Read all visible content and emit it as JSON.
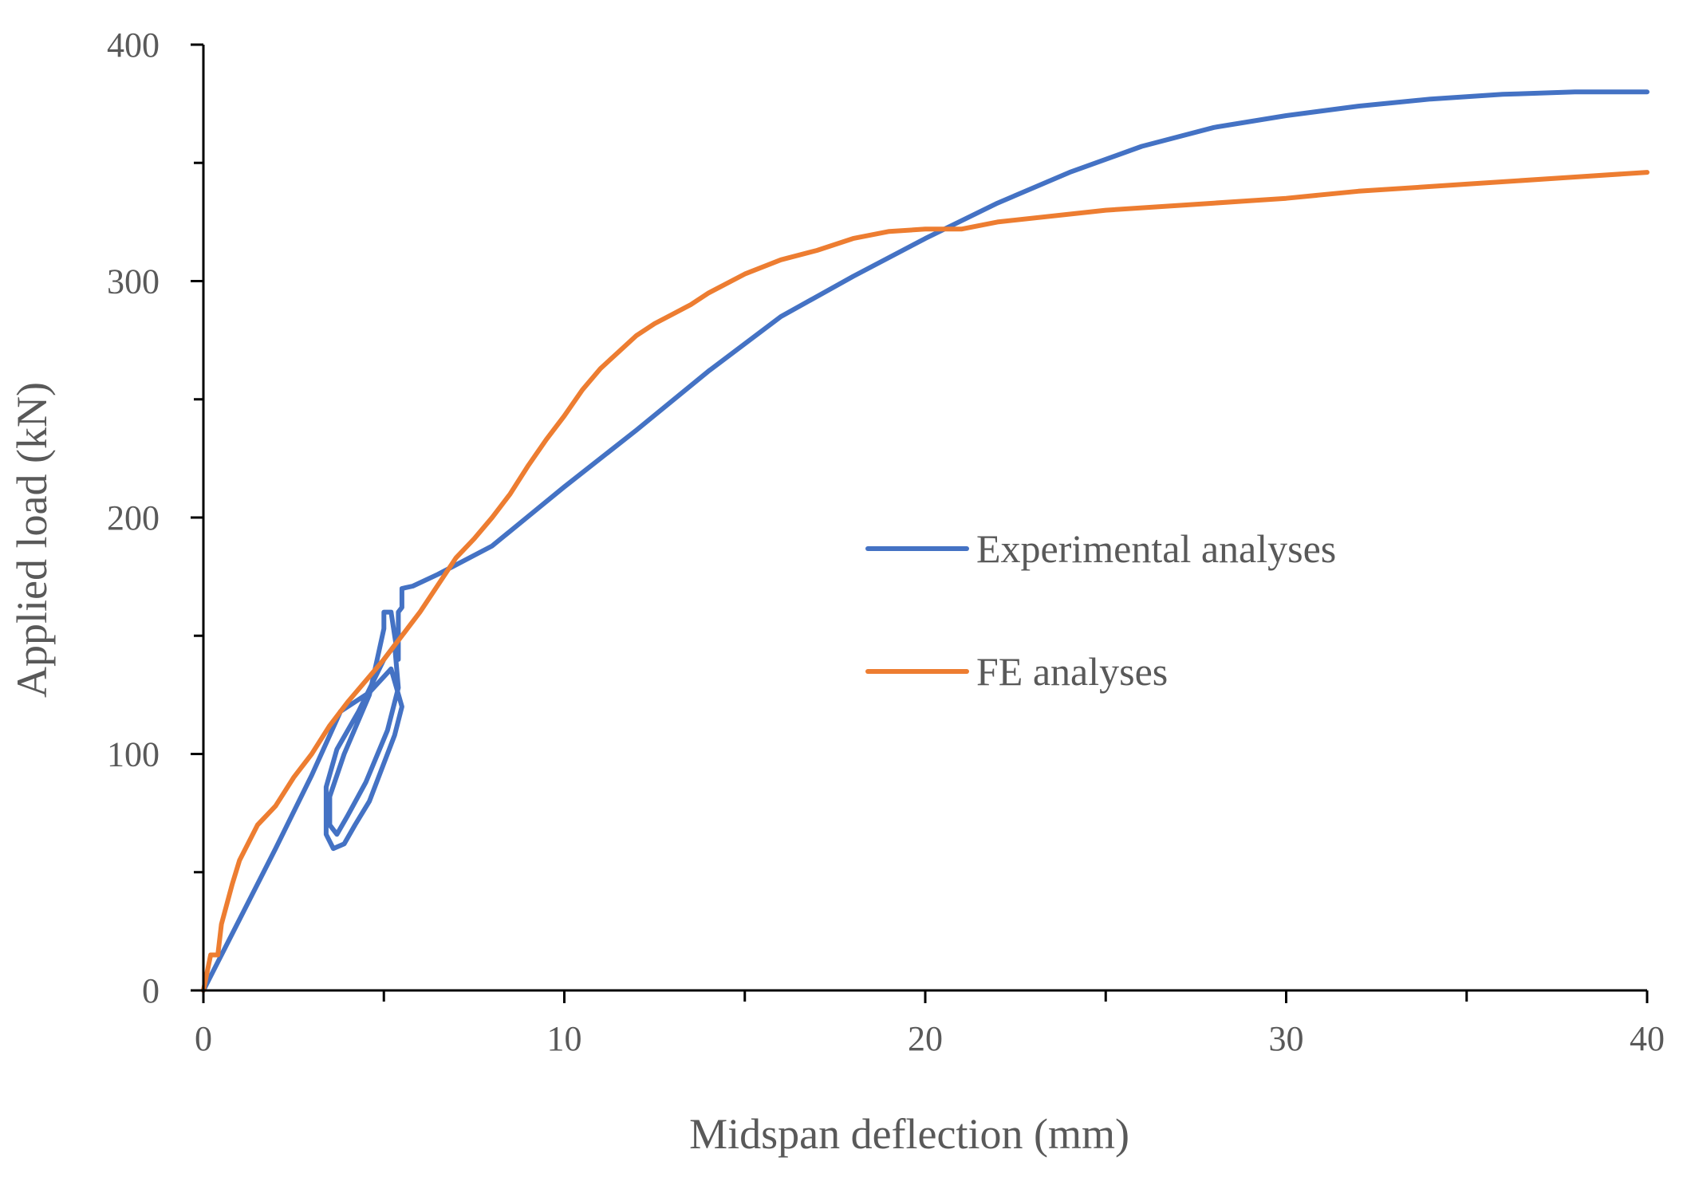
{
  "chart_data": {
    "type": "line",
    "title": "",
    "xlabel": "Midspan deflection (mm)",
    "ylabel": "Applied load (kN)",
    "xlim": [
      0,
      40
    ],
    "ylim": [
      0,
      400
    ],
    "x_major_ticks": [
      0,
      10,
      20,
      30,
      40
    ],
    "x_minor_ticks": [
      5,
      15,
      25,
      35
    ],
    "y_major_ticks": [
      0,
      100,
      200,
      300,
      400
    ],
    "y_minor_ticks": [
      50,
      150,
      250,
      350
    ],
    "x_tick_labels": [
      "0",
      "10",
      "20",
      "30",
      "40"
    ],
    "y_tick_labels": [
      "0",
      "100",
      "200",
      "300",
      "400"
    ],
    "grid": false,
    "legend_position": "center-right",
    "series": [
      {
        "name": "Experimental analyses",
        "color": "#4472C4",
        "points": [
          [
            0,
            0
          ],
          [
            1,
            30
          ],
          [
            2,
            60
          ],
          [
            3,
            91
          ],
          [
            3.8,
            118
          ],
          [
            4.6,
            126
          ],
          [
            5.2,
            136
          ],
          [
            5.5,
            120
          ],
          [
            5.3,
            108
          ],
          [
            4.6,
            80
          ],
          [
            4.2,
            70
          ],
          [
            3.9,
            62
          ],
          [
            3.6,
            60
          ],
          [
            3.4,
            66
          ],
          [
            3.4,
            86
          ],
          [
            3.7,
            102
          ],
          [
            4.3,
            118
          ],
          [
            5.0,
            140
          ],
          [
            5.3,
            146
          ],
          [
            5.4,
            128
          ],
          [
            5.1,
            110
          ],
          [
            4.5,
            88
          ],
          [
            4.0,
            74
          ],
          [
            3.7,
            66
          ],
          [
            3.5,
            70
          ],
          [
            3.5,
            82
          ],
          [
            3.9,
            100
          ],
          [
            4.6,
            125
          ],
          [
            5.0,
            153
          ],
          [
            5.0,
            160
          ],
          [
            5.2,
            160
          ],
          [
            5.3,
            150
          ],
          [
            5.4,
            140
          ],
          [
            5.4,
            160
          ],
          [
            5.5,
            162
          ],
          [
            5.5,
            170
          ],
          [
            5.8,
            171
          ],
          [
            6.5,
            176
          ],
          [
            8,
            188
          ],
          [
            10,
            213
          ],
          [
            12,
            237
          ],
          [
            14,
            262
          ],
          [
            16,
            285
          ],
          [
            18,
            302
          ],
          [
            20,
            318
          ],
          [
            22,
            333
          ],
          [
            24,
            346
          ],
          [
            26,
            357
          ],
          [
            28,
            365
          ],
          [
            30,
            370
          ],
          [
            32,
            374
          ],
          [
            34,
            377
          ],
          [
            36,
            379
          ],
          [
            38,
            380
          ],
          [
            40,
            380
          ]
        ]
      },
      {
        "name": "FE analyses",
        "color": "#ED7D31",
        "points": [
          [
            0,
            0
          ],
          [
            0.2,
            15
          ],
          [
            0.4,
            15
          ],
          [
            0.5,
            28
          ],
          [
            0.8,
            45
          ],
          [
            1.0,
            55
          ],
          [
            1.5,
            70
          ],
          [
            2.0,
            78
          ],
          [
            2.5,
            90
          ],
          [
            3.0,
            100
          ],
          [
            3.5,
            112
          ],
          [
            4.0,
            122
          ],
          [
            5.0,
            140
          ],
          [
            6.0,
            160
          ],
          [
            7.0,
            183
          ],
          [
            7.5,
            191
          ],
          [
            8.0,
            200
          ],
          [
            8.5,
            210
          ],
          [
            9.0,
            222
          ],
          [
            9.5,
            233
          ],
          [
            10,
            243
          ],
          [
            10.5,
            254
          ],
          [
            11,
            263
          ],
          [
            11.5,
            270
          ],
          [
            12,
            277
          ],
          [
            12.5,
            282
          ],
          [
            13,
            286
          ],
          [
            13.5,
            290
          ],
          [
            14,
            295
          ],
          [
            15,
            303
          ],
          [
            16,
            309
          ],
          [
            17,
            313
          ],
          [
            18,
            318
          ],
          [
            19,
            321
          ],
          [
            20,
            322
          ],
          [
            21,
            322
          ],
          [
            22,
            325
          ],
          [
            25,
            330
          ],
          [
            28,
            333
          ],
          [
            30,
            335
          ],
          [
            32,
            338
          ],
          [
            35,
            341
          ],
          [
            38,
            344
          ],
          [
            40,
            346
          ]
        ]
      }
    ]
  }
}
